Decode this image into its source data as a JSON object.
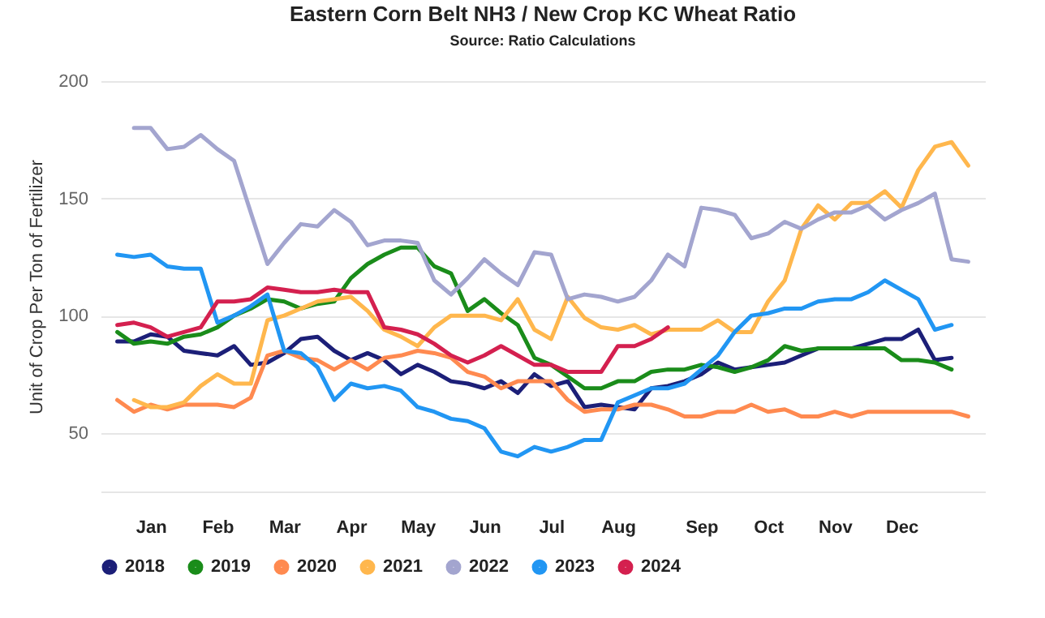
{
  "chart_data": {
    "type": "line",
    "title": "Eastern Corn Belt NH3 / New Crop KC Wheat Ratio",
    "subtitle": "Source: Ratio Calculations",
    "ylabel": "Unit of Crop Per Ton of Fertilizer",
    "categories": [
      null,
      null,
      "Jan",
      null,
      null,
      null,
      "Feb",
      null,
      null,
      null,
      "Mar",
      null,
      null,
      null,
      "Apr",
      null,
      null,
      null,
      "May",
      null,
      null,
      null,
      "Jun",
      null,
      null,
      null,
      "Jul",
      null,
      null,
      null,
      "Aug",
      null,
      null,
      null,
      null,
      "Sep",
      null,
      null,
      null,
      "Oct",
      null,
      null,
      null,
      "Nov",
      null,
      null,
      null,
      "Dec",
      null,
      null,
      null,
      null
    ],
    "ylim": [
      25,
      200
    ],
    "yticks": [
      50,
      100,
      150,
      200
    ],
    "grid": "y",
    "legend": "bottom",
    "series": [
      {
        "name": "2018",
        "color": "#1c1f78",
        "values": [
          89,
          89,
          92,
          91,
          85,
          84,
          83,
          87,
          79,
          80,
          84,
          90,
          91,
          85,
          81,
          84,
          81,
          75,
          79,
          76,
          72,
          71,
          69,
          72,
          67,
          75,
          70,
          72,
          61,
          62,
          61,
          60,
          69,
          70,
          72,
          75,
          80,
          77,
          78,
          79,
          80,
          83,
          86,
          86,
          86,
          88,
          90,
          90,
          94,
          81,
          82,
          null
        ]
      },
      {
        "name": "2019",
        "color": "#1a8c1a",
        "values": [
          93,
          88,
          89,
          88,
          91,
          92,
          95,
          100,
          103,
          107,
          106,
          103,
          105,
          106,
          116,
          122,
          126,
          129,
          129,
          121,
          118,
          102,
          107,
          101,
          96,
          82,
          79,
          74,
          69,
          69,
          72,
          72,
          76,
          77,
          77,
          79,
          78,
          76,
          78,
          81,
          87,
          85,
          86,
          86,
          86,
          86,
          86,
          81,
          81,
          80,
          77,
          null
        ]
      },
      {
        "name": "2020",
        "color": "#ff8a50",
        "values": [
          64,
          59,
          62,
          60,
          62,
          62,
          62,
          61,
          65,
          83,
          85,
          82,
          81,
          77,
          81,
          77,
          82,
          83,
          85,
          84,
          82,
          76,
          74,
          69,
          72,
          72,
          72,
          64,
          59,
          60,
          60,
          62,
          62,
          60,
          57,
          57,
          59,
          59,
          62,
          59,
          60,
          57,
          57,
          59,
          57,
          59,
          59,
          59,
          59,
          59,
          59,
          57
        ]
      },
      {
        "name": "2021",
        "color": "#ffb74d",
        "values": [
          null,
          64,
          61,
          61,
          63,
          70,
          75,
          71,
          71,
          98,
          100,
          103,
          106,
          107,
          108,
          102,
          94,
          91,
          87,
          95,
          100,
          100,
          100,
          98,
          107,
          94,
          90,
          108,
          99,
          95,
          94,
          96,
          92,
          94,
          94,
          94,
          98,
          93,
          93,
          106,
          115,
          137,
          147,
          141,
          148,
          148,
          153,
          146,
          162,
          172,
          174,
          164
        ]
      },
      {
        "name": "2022",
        "color": "#a3a5cf",
        "values": [
          null,
          180,
          180,
          171,
          172,
          177,
          171,
          166,
          144,
          122,
          131,
          139,
          138,
          145,
          140,
          130,
          132,
          132,
          131,
          115,
          109,
          116,
          124,
          118,
          113,
          127,
          126,
          107,
          109,
          108,
          106,
          108,
          115,
          126,
          121,
          146,
          145,
          143,
          133,
          135,
          140,
          137,
          141,
          144,
          144,
          147,
          141,
          145,
          148,
          152,
          124,
          123
        ]
      },
      {
        "name": "2023",
        "color": "#2196f3",
        "values": [
          126,
          125,
          126,
          121,
          120,
          120,
          97,
          100,
          104,
          109,
          85,
          84,
          78,
          64,
          71,
          69,
          70,
          68,
          61,
          59,
          56,
          55,
          52,
          42,
          40,
          44,
          42,
          44,
          47,
          47,
          63,
          66,
          69,
          69,
          71,
          77,
          83,
          93,
          100,
          101,
          103,
          103,
          106,
          107,
          107,
          110,
          115,
          111,
          107,
          94,
          96,
          null
        ]
      },
      {
        "name": "2024",
        "color": "#d4204f",
        "values": [
          96,
          97,
          95,
          91,
          93,
          95,
          106,
          106,
          107,
          112,
          111,
          110,
          110,
          111,
          110,
          110,
          95,
          94,
          92,
          88,
          83,
          80,
          83,
          87,
          83,
          79,
          79,
          76,
          76,
          76,
          87,
          87,
          90,
          95,
          null,
          null,
          null,
          null,
          null,
          null,
          null,
          null,
          null,
          null,
          null,
          null,
          null,
          null,
          null,
          null,
          null,
          null
        ]
      }
    ]
  }
}
